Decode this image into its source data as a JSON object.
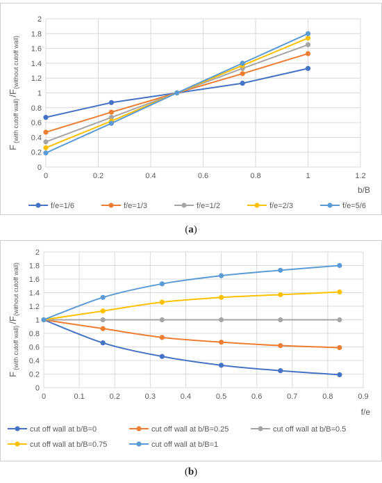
{
  "captions": {
    "a": "a",
    "b": "b"
  },
  "chart_data": [
    {
      "type": "line",
      "xlabel": "b/B",
      "ylabel_main": "F",
      "ylabel_sub1": "(with cutoff wall)",
      "ylabel_sub2": "(without cutoff wall)",
      "ylabel_sep": "/F",
      "xlim": [
        0,
        1.2
      ],
      "ylim": [
        0,
        2
      ],
      "xticks": [
        "0",
        "0.2",
        "0.4",
        "0.6",
        "0.8",
        "1",
        "1.2"
      ],
      "yticks": [
        "0",
        "0.2",
        "0.4",
        "0.6",
        "0.8",
        "1",
        "1.2",
        "1.4",
        "1.6",
        "1.8",
        "2"
      ],
      "x": [
        0,
        0.25,
        0.5,
        0.75,
        1
      ],
      "grid": true,
      "legend_position": "bottom",
      "series": [
        {
          "name": "f/e=1/6",
          "color": "#4472C4",
          "values": [
            0.67,
            0.87,
            1.0,
            1.13,
            1.33
          ]
        },
        {
          "name": "f/e=1/3",
          "color": "#ED7D31",
          "values": [
            0.47,
            0.74,
            1.0,
            1.26,
            1.53
          ]
        },
        {
          "name": "f/e=1/2",
          "color": "#A5A5A5",
          "values": [
            0.34,
            0.67,
            1.0,
            1.33,
            1.65
          ]
        },
        {
          "name": "f/e=2/3",
          "color": "#FFC000",
          "values": [
            0.26,
            0.62,
            1.0,
            1.37,
            1.74
          ]
        },
        {
          "name": "f/e=5/6",
          "color": "#5B9BD5",
          "values": [
            0.19,
            0.59,
            1.0,
            1.4,
            1.8
          ]
        }
      ]
    },
    {
      "type": "line",
      "xlabel": "f/e",
      "ylabel_main": "F",
      "ylabel_sub1": "(with cutoff wall)",
      "ylabel_sub2": "(without cutoff wall)",
      "ylabel_sep": "/F",
      "xlim": [
        0,
        0.9
      ],
      "ylim": [
        0,
        2
      ],
      "xticks": [
        "0",
        "0.1",
        "0.2",
        "0.3",
        "0.4",
        "0.5",
        "0.6",
        "0.7",
        "0.8",
        "0.9"
      ],
      "yticks": [
        "0",
        "0.2",
        "0.4",
        "0.6",
        "0.8",
        "1",
        "1.2",
        "1.4",
        "1.6",
        "1.8",
        "2"
      ],
      "x": [
        0,
        0.1667,
        0.3333,
        0.5,
        0.6667,
        0.8333
      ],
      "grid": true,
      "legend_position": "bottom",
      "series": [
        {
          "name": "cut off wall at b/B=0",
          "color": "#4472C4",
          "values": [
            1.0,
            0.66,
            0.46,
            0.33,
            0.25,
            0.19
          ]
        },
        {
          "name": "cut off wall at b/B=0.25",
          "color": "#ED7D31",
          "values": [
            1.0,
            0.87,
            0.74,
            0.67,
            0.62,
            0.59
          ]
        },
        {
          "name": "cut off wall at b/B=0.5",
          "color": "#A5A5A5",
          "values": [
            1.0,
            1.0,
            1.0,
            1.0,
            1.0,
            1.0
          ]
        },
        {
          "name": "cut off wall at b/B=0.75",
          "color": "#FFC000",
          "values": [
            1.0,
            1.13,
            1.26,
            1.33,
            1.37,
            1.41
          ]
        },
        {
          "name": "cut off wall at b/B=1",
          "color": "#5B9BD5",
          "values": [
            1.0,
            1.33,
            1.53,
            1.65,
            1.73,
            1.8
          ]
        }
      ]
    }
  ]
}
